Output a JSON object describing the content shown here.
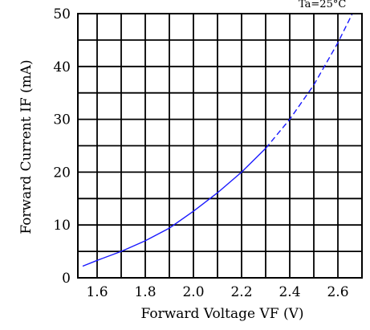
{
  "chart_data": {
    "type": "line",
    "corner_text": "Ta=25°C",
    "xlabel": "Forward Voltage  VF (V)",
    "ylabel": "Forward Current IF (mA)",
    "xlim": [
      1.52,
      2.7
    ],
    "ylim": [
      0,
      50
    ],
    "x_ticks": [
      1.6,
      1.8,
      2.0,
      2.2,
      2.4,
      2.6
    ],
    "x_tick_labels": [
      "1.6",
      "1.8",
      "2.0",
      "2.2",
      "2.4",
      "2.6"
    ],
    "y_ticks": [
      0,
      10,
      20,
      30,
      40,
      50
    ],
    "y_tick_labels": [
      "0",
      "10",
      "20",
      "30",
      "40",
      "50"
    ],
    "x_grid_step": 0.1,
    "y_grid_step": 5,
    "grid": true,
    "series": [
      {
        "line_style": "solid",
        "color": "#1a1aff",
        "x": [
          1.54,
          1.6,
          1.7,
          1.8,
          1.9,
          2.0,
          2.1,
          2.2,
          2.3
        ],
        "y": [
          2.2,
          3.3,
          5.0,
          7.0,
          9.4,
          12.6,
          16.1,
          20.0,
          24.5
        ]
      },
      {
        "line_style": "dashed",
        "color": "#1a1aff",
        "x": [
          2.3,
          2.4,
          2.5,
          2.6,
          2.66
        ],
        "y": [
          24.5,
          30.0,
          36.5,
          44.5,
          50.0
        ]
      }
    ]
  }
}
